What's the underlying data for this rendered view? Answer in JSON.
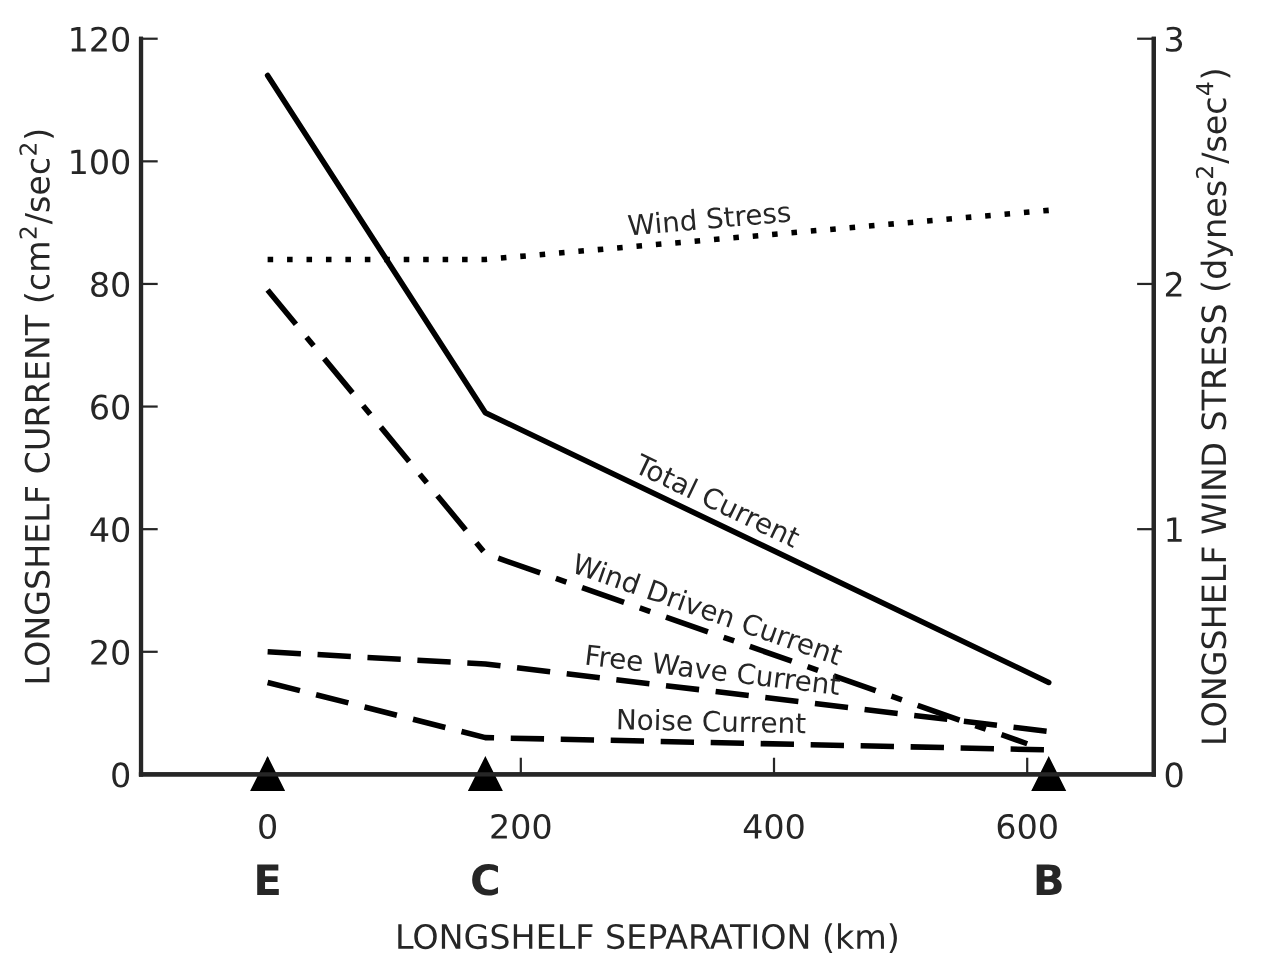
{
  "chart_data": {
    "type": "line",
    "xlabel": "LONGSHELF SEPARATION (km)",
    "ylabel": "LONGSHELF CURRENT (cm$^{2}$/sec$^{2}$)",
    "y2label": "LONGSHELF WIND STRESS (dynes$^{2}$/sec$^{4}$)",
    "x": [
      0,
      172,
      617
    ],
    "series": [
      {
        "name": "Total Current",
        "color": "#000000",
        "line_style": "solid",
        "values": [
          114,
          59,
          15
        ]
      },
      {
        "name": "Wind Driven Current",
        "color": "#000000",
        "line_style": "dashdot",
        "x": [
          0,
          172,
          600
        ],
        "values": [
          79,
          36,
          5
        ]
      },
      {
        "name": "Free Wave Current",
        "color": "#000000",
        "line_style": "dashed",
        "values": [
          20,
          18,
          7
        ]
      },
      {
        "name": "Noise Current",
        "color": "#000000",
        "line_style": "dashed",
        "values": [
          15,
          6,
          4
        ]
      },
      {
        "name": "Wind Stress",
        "color": "#000000",
        "line_style": "dotted",
        "axis": "y2",
        "values": [
          2.1,
          2.1,
          2.3
        ]
      }
    ],
    "annotations": [
      {
        "text": "E",
        "x": 0,
        "y": 0
      },
      {
        "text": "C",
        "x": 172,
        "y": 0
      },
      {
        "text": "B",
        "x": 617,
        "y": 0
      }
    ],
    "xlim": [
      -100,
      700
    ],
    "xticks": [
      0,
      200,
      400,
      600
    ],
    "ylim": [
      0,
      120
    ],
    "yticks": [
      0,
      20,
      40,
      60,
      80,
      100,
      120
    ],
    "y2lim": [
      0,
      3
    ],
    "y2ticks": [
      0,
      1,
      2,
      3
    ],
    "grid": false,
    "legend": false,
    "marker": "none"
  }
}
